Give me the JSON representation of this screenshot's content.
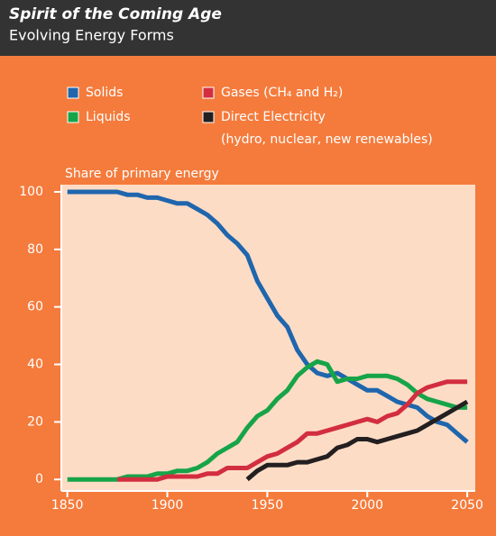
{
  "chart_data": {
    "type": "line",
    "title": "Spirit of the Coming Age",
    "subtitle": "Evolving Energy Forms",
    "y_label": "Share of primary energy",
    "legend_note": "(hydro, nuclear, new renewables)",
    "x": [
      1850,
      1855,
      1860,
      1865,
      1870,
      1875,
      1880,
      1885,
      1890,
      1895,
      1900,
      1905,
      1910,
      1915,
      1920,
      1925,
      1930,
      1935,
      1940,
      1945,
      1950,
      1955,
      1960,
      1965,
      1970,
      1975,
      1980,
      1985,
      1990,
      1995,
      2000,
      2005,
      2010,
      2015,
      2020,
      2025,
      2030,
      2035,
      2040,
      2045,
      2050
    ],
    "series": [
      {
        "name": "Solids",
        "color": "#1f66ad",
        "values": [
          100,
          100,
          100,
          100,
          100,
          100,
          99,
          99,
          98,
          98,
          97,
          96,
          96,
          94,
          92,
          89,
          85,
          82,
          78,
          69,
          63,
          57,
          53,
          45,
          40,
          37,
          36,
          37,
          35,
          33,
          31,
          31,
          29,
          27,
          26,
          25,
          22,
          20,
          19,
          16,
          13
        ]
      },
      {
        "name": "Liquids",
        "color": "#17a449",
        "values": [
          0,
          0,
          0,
          0,
          0,
          0,
          1,
          1,
          1,
          2,
          2,
          3,
          3,
          4,
          6,
          9,
          11,
          13,
          18,
          22,
          24,
          28,
          31,
          36,
          39,
          41,
          40,
          34,
          35,
          35,
          36,
          36,
          36,
          35,
          33,
          30,
          28,
          27,
          26,
          25,
          25
        ]
      },
      {
        "name": "Gases (CH₄ and H₂)",
        "color": "#d22e40",
        "values": [
          null,
          null,
          null,
          null,
          null,
          0,
          0,
          0,
          0,
          0,
          1,
          1,
          1,
          1,
          2,
          2,
          4,
          4,
          4,
          6,
          8,
          9,
          11,
          13,
          16,
          16,
          17,
          18,
          19,
          20,
          21,
          20,
          22,
          23,
          26,
          30,
          32,
          33,
          34,
          34,
          34
        ]
      },
      {
        "name": "Direct Electricity",
        "color": "#231f20",
        "values": [
          null,
          null,
          null,
          null,
          null,
          null,
          null,
          null,
          null,
          null,
          null,
          null,
          null,
          null,
          null,
          null,
          null,
          null,
          0,
          3,
          5,
          5,
          5,
          6,
          6,
          7,
          8,
          11,
          12,
          14,
          14,
          13,
          14,
          15,
          16,
          17,
          19,
          21,
          23,
          25,
          27
        ]
      }
    ],
    "xlim": [
      1847,
      2054
    ],
    "ylim": [
      -4,
      102.5
    ],
    "xticks": [
      1850,
      1900,
      1950,
      2000,
      2050
    ],
    "yticks": [
      0,
      20,
      40,
      60,
      80,
      100
    ]
  }
}
